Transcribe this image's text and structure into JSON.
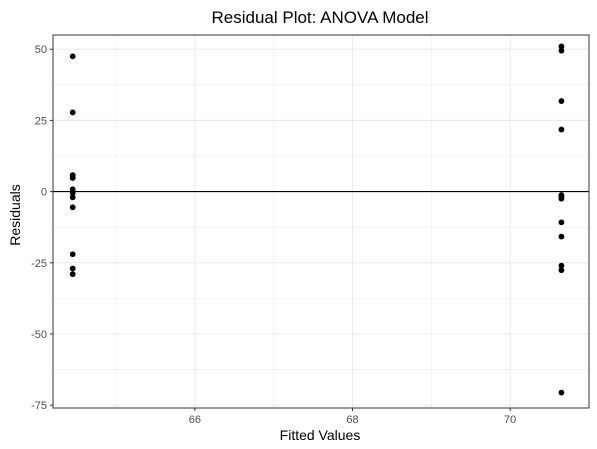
{
  "chart_data": {
    "type": "scatter",
    "title": "Residual Plot: ANOVA Model",
    "xlabel": "Fitted Values",
    "ylabel": "Residuals",
    "xlim": [
      64.2,
      71.0
    ],
    "ylim": [
      -76,
      55
    ],
    "xticks": [
      66,
      68,
      70
    ],
    "yticks": [
      50,
      25,
      0,
      -25,
      -50,
      -75
    ],
    "grid": true,
    "reference_line_y": 0,
    "series": [
      {
        "x": [
          64.45,
          64.45,
          64.45,
          64.45,
          64.45,
          64.45,
          64.45,
          64.45,
          64.45,
          64.45,
          64.45,
          64.45,
          70.65,
          70.65,
          70.65,
          70.65,
          70.65,
          70.65,
          70.65,
          70.65,
          70.65,
          70.65,
          70.65,
          70.65
        ],
        "y": [
          47.5,
          27.8,
          5.8,
          5.0,
          0.8,
          -0.5,
          -2.0,
          -5.5,
          -22.0,
          -27.0,
          -29.0,
          4.8,
          51.0,
          49.5,
          31.8,
          21.8,
          -1.2,
          -2.5,
          -10.8,
          -15.8,
          -26.0,
          -27.6,
          -70.6,
          -1.8
        ]
      }
    ],
    "colors": {
      "points": "#000000",
      "grid": "#ebebeb",
      "panel_border": "#333333",
      "zero_line": "#000000"
    }
  }
}
